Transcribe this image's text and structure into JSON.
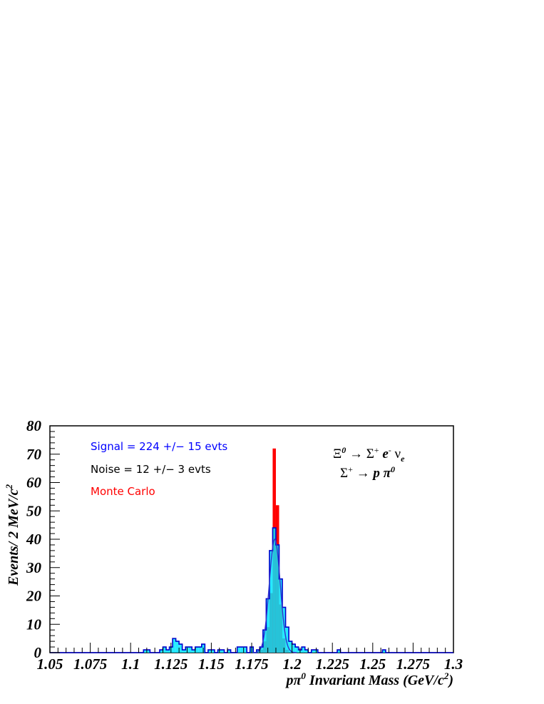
{
  "chart_data": {
    "type": "bar",
    "xlabel_prefix": "pπ",
    "xlabel_sup": "0",
    "xlabel_main": " Invariant Mass (GeV/c",
    "xlabel_sup2": "2",
    "xlabel_end": ")",
    "ylabel_main": "Events/ 2 MeV/c",
    "ylabel_sup": "2",
    "xlim": [
      1.05,
      1.3
    ],
    "ylim": [
      0,
      80
    ],
    "bin_width": 0.002,
    "x_ticks": [
      "1.05",
      "1.075",
      "1.1",
      "1.125",
      "1.15",
      "1.175",
      "1.2",
      "1.225",
      "1.25",
      "1.275",
      "1.3"
    ],
    "y_ticks": [
      "0",
      "10",
      "20",
      "30",
      "40",
      "50",
      "60",
      "70",
      "80"
    ],
    "annotations": {
      "signal": "Signal = 224 +/− 15 evts",
      "noise": "Noise = 12 +/− 3 evts",
      "mc": "Monte Carlo"
    },
    "decay": {
      "line1_a": "Ξ",
      "line1_a_sup": "0",
      "line1_b": " → Σ",
      "line1_b_sup": "+",
      "line1_c": " e",
      "line1_c_sup": "-",
      "line1_d": " ν",
      "line1_d_sub": "e",
      "line2_a": "Σ",
      "line2_a_sup": "+",
      "line2_b": " → p π",
      "line2_b_sup": "0"
    },
    "colors": {
      "data_fill": "#00e5ff",
      "data_line": "#0000cc",
      "mc_fill": "#ff0000",
      "fit_line": "#3333cc",
      "signal_text": "#0000ff",
      "noise_text": "#000000",
      "mc_text": "#ff0000"
    },
    "series": [
      {
        "name": "Signal = 224 +/− 15 evts",
        "kind": "histogram",
        "bins": [
          {
            "x": 1.108,
            "y": 1
          },
          {
            "x": 1.11,
            "y": 1
          },
          {
            "x": 1.118,
            "y": 1
          },
          {
            "x": 1.12,
            "y": 2
          },
          {
            "x": 1.122,
            "y": 1
          },
          {
            "x": 1.124,
            "y": 2
          },
          {
            "x": 1.126,
            "y": 5
          },
          {
            "x": 1.128,
            "y": 4
          },
          {
            "x": 1.13,
            "y": 3
          },
          {
            "x": 1.132,
            "y": 1
          },
          {
            "x": 1.134,
            "y": 2
          },
          {
            "x": 1.136,
            "y": 2
          },
          {
            "x": 1.138,
            "y": 1
          },
          {
            "x": 1.14,
            "y": 2
          },
          {
            "x": 1.142,
            "y": 2
          },
          {
            "x": 1.144,
            "y": 3
          },
          {
            "x": 1.148,
            "y": 1
          },
          {
            "x": 1.15,
            "y": 1
          },
          {
            "x": 1.154,
            "y": 1
          },
          {
            "x": 1.156,
            "y": 1
          },
          {
            "x": 1.16,
            "y": 1
          },
          {
            "x": 1.166,
            "y": 2
          },
          {
            "x": 1.168,
            "y": 2
          },
          {
            "x": 1.17,
            "y": 2
          },
          {
            "x": 1.174,
            "y": 2
          },
          {
            "x": 1.178,
            "y": 1
          },
          {
            "x": 1.18,
            "y": 2
          },
          {
            "x": 1.182,
            "y": 8
          },
          {
            "x": 1.184,
            "y": 19
          },
          {
            "x": 1.186,
            "y": 36
          },
          {
            "x": 1.188,
            "y": 44
          },
          {
            "x": 1.19,
            "y": 38
          },
          {
            "x": 1.192,
            "y": 26
          },
          {
            "x": 1.194,
            "y": 16
          },
          {
            "x": 1.196,
            "y": 9
          },
          {
            "x": 1.198,
            "y": 4
          },
          {
            "x": 1.2,
            "y": 3
          },
          {
            "x": 1.202,
            "y": 2
          },
          {
            "x": 1.204,
            "y": 1
          },
          {
            "x": 1.206,
            "y": 2
          },
          {
            "x": 1.208,
            "y": 1
          },
          {
            "x": 1.212,
            "y": 1
          },
          {
            "x": 1.214,
            "y": 1
          },
          {
            "x": 1.228,
            "y": 1
          },
          {
            "x": 1.256,
            "y": 1
          }
        ]
      },
      {
        "name": "Monte Carlo",
        "kind": "histogram",
        "bins": [
          {
            "x": 1.18,
            "y": 1
          },
          {
            "x": 1.182,
            "y": 4
          },
          {
            "x": 1.184,
            "y": 9
          },
          {
            "x": 1.186,
            "y": 21
          },
          {
            "x": 1.188,
            "y": 72
          },
          {
            "x": 1.19,
            "y": 52
          },
          {
            "x": 1.192,
            "y": 17
          },
          {
            "x": 1.194,
            "y": 5
          },
          {
            "x": 1.196,
            "y": 1
          }
        ]
      },
      {
        "name": "fit",
        "kind": "gaussian",
        "amplitude": 40,
        "mean": 1.1893,
        "sigma": 0.0034
      }
    ]
  }
}
